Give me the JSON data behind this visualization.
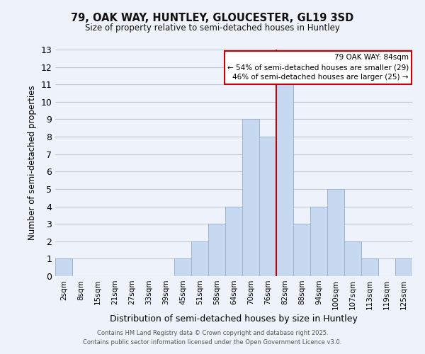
{
  "title": "79, OAK WAY, HUNTLEY, GLOUCESTER, GL19 3SD",
  "subtitle": "Size of property relative to semi-detached houses in Huntley",
  "xlabel": "Distribution of semi-detached houses by size in Huntley",
  "ylabel": "Number of semi-detached properties",
  "bin_labels": [
    "2sqm",
    "8sqm",
    "15sqm",
    "21sqm",
    "27sqm",
    "33sqm",
    "39sqm",
    "45sqm",
    "51sqm",
    "58sqm",
    "64sqm",
    "70sqm",
    "76sqm",
    "82sqm",
    "88sqm",
    "94sqm",
    "100sqm",
    "107sqm",
    "113sqm",
    "119sqm",
    "125sqm"
  ],
  "bin_counts": [
    1,
    0,
    0,
    0,
    0,
    0,
    0,
    1,
    2,
    3,
    4,
    9,
    8,
    11,
    3,
    4,
    5,
    2,
    1,
    0,
    1
  ],
  "bar_color": "#c6d9f0",
  "bar_edge_color": "#a0b4d0",
  "grid_color": "#c0c8d8",
  "background_color": "#eef2fa",
  "vline_x_index": 13,
  "vline_color": "#cc0000",
  "annotation_title": "79 OAK WAY: 84sqm",
  "annotation_line1": "← 54% of semi-detached houses are smaller (29)",
  "annotation_line2": "46% of semi-detached houses are larger (25) →",
  "annotation_box_color": "#ffffff",
  "annotation_box_edge": "#cc0000",
  "footer_line1": "Contains HM Land Registry data © Crown copyright and database right 2025.",
  "footer_line2": "Contains public sector information licensed under the Open Government Licence v3.0.",
  "ylim": [
    0,
    13
  ],
  "yticks": [
    0,
    1,
    2,
    3,
    4,
    5,
    6,
    7,
    8,
    9,
    10,
    11,
    12,
    13
  ]
}
